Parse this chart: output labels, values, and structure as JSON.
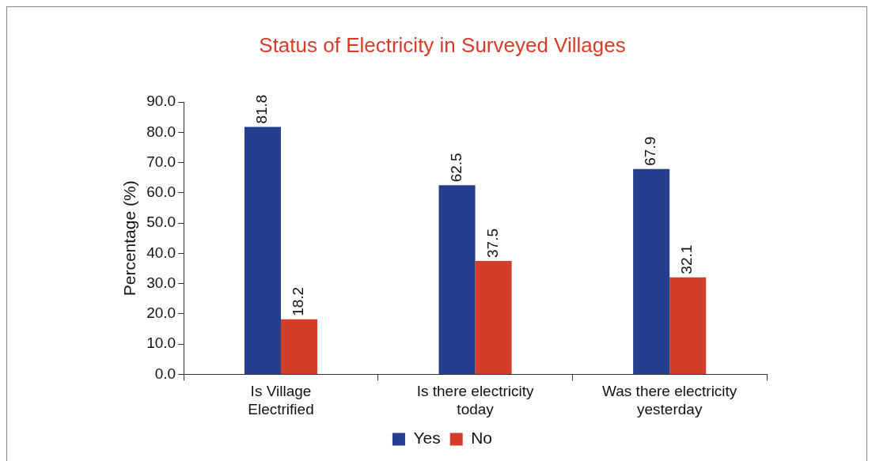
{
  "chart_data": {
    "type": "bar",
    "title": "Status of Electricity in Surveyed Villages",
    "ylabel": "Percentage (%)",
    "categories": [
      "Is Village\nElectrified",
      "Is there electricity\ntoday",
      "Was there electricity\nyesterday"
    ],
    "series": [
      {
        "name": "Yes",
        "color": "#253f8e",
        "values": [
          81.8,
          62.5,
          67.9
        ]
      },
      {
        "name": "No",
        "color": "#d43d29",
        "values": [
          18.2,
          37.5,
          32.1
        ]
      }
    ],
    "ylim": [
      0,
      90
    ],
    "yticks": [
      {
        "value": 0,
        "label": "0.0"
      },
      {
        "value": 10,
        "label": "10.0"
      },
      {
        "value": 20,
        "label": "20.0"
      },
      {
        "value": 30,
        "label": "30.0"
      },
      {
        "value": 40,
        "label": "40.0"
      },
      {
        "value": 50,
        "label": "50.0"
      },
      {
        "value": 60,
        "label": "60.0"
      },
      {
        "value": 70,
        "label": "70.0"
      },
      {
        "value": 80,
        "label": "80.0"
      },
      {
        "value": 90,
        "label": "90.0"
      }
    ],
    "grid": false,
    "legend": "bottom",
    "data_labels": true
  }
}
